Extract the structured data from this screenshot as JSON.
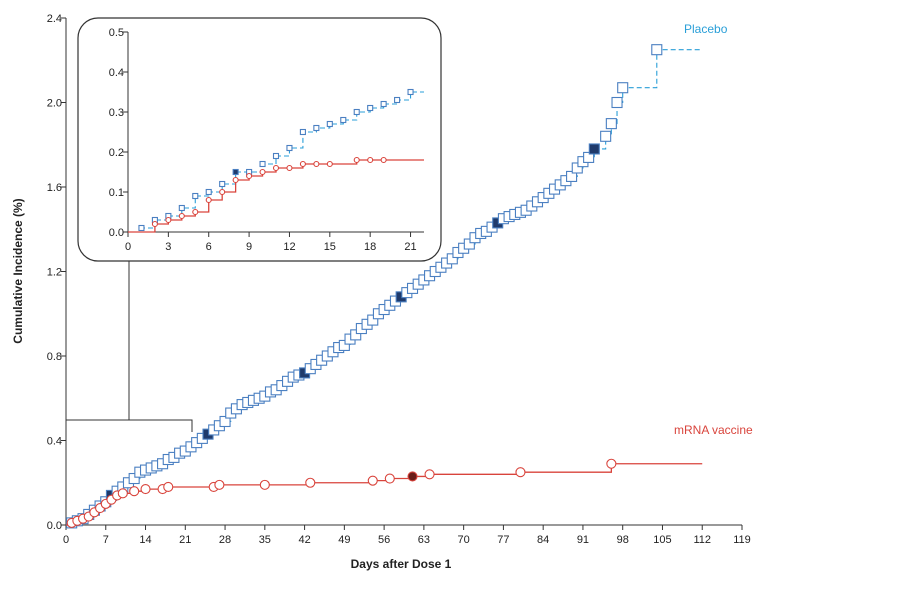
{
  "chart_data": [
    {
      "type": "line",
      "xlabel": "Days after Dose 1",
      "ylabel": "Cumulative Incidence (%)",
      "xlim": [
        0,
        119
      ],
      "ylim": [
        0,
        2.4
      ],
      "x_ticks": [
        0,
        7,
        14,
        21,
        28,
        35,
        42,
        49,
        56,
        63,
        70,
        77,
        84,
        91,
        98,
        105,
        112,
        119
      ],
      "y_ticks": [
        "0.0",
        "0.4",
        "0.8",
        "1.2",
        "1.6",
        "2.0",
        "2.4"
      ],
      "grid": false,
      "legend": "direct labels",
      "series": [
        {
          "name": "Placebo",
          "color": "#2a9fd8",
          "line_style": "dashed",
          "marker": "square",
          "x": [
            0,
            1,
            2,
            3,
            4,
            5,
            6,
            7,
            8,
            9,
            10,
            11,
            12,
            13,
            14,
            15,
            16,
            17,
            18,
            19,
            20,
            21,
            22,
            23,
            24,
            25,
            26,
            27,
            28,
            29,
            30,
            31,
            32,
            33,
            34,
            35,
            36,
            37,
            38,
            39,
            40,
            41,
            42,
            43,
            44,
            45,
            46,
            47,
            48,
            49,
            50,
            51,
            52,
            53,
            54,
            55,
            56,
            57,
            58,
            59,
            60,
            61,
            62,
            63,
            64,
            65,
            66,
            67,
            68,
            69,
            70,
            71,
            72,
            73,
            74,
            75,
            76,
            77,
            78,
            79,
            80,
            81,
            82,
            83,
            84,
            85,
            86,
            87,
            88,
            89,
            90,
            91,
            92,
            93,
            95,
            96,
            97,
            98,
            104,
            112
          ],
          "y": [
            0.0,
            0.01,
            0.02,
            0.03,
            0.05,
            0.07,
            0.09,
            0.11,
            0.14,
            0.16,
            0.18,
            0.2,
            0.22,
            0.25,
            0.26,
            0.27,
            0.28,
            0.29,
            0.31,
            0.32,
            0.34,
            0.35,
            0.37,
            0.39,
            0.41,
            0.43,
            0.45,
            0.47,
            0.49,
            0.53,
            0.55,
            0.57,
            0.58,
            0.59,
            0.6,
            0.61,
            0.63,
            0.64,
            0.66,
            0.68,
            0.7,
            0.71,
            0.72,
            0.74,
            0.76,
            0.78,
            0.8,
            0.82,
            0.84,
            0.85,
            0.88,
            0.9,
            0.93,
            0.95,
            0.97,
            1.0,
            1.02,
            1.04,
            1.06,
            1.08,
            1.1,
            1.12,
            1.14,
            1.16,
            1.18,
            1.2,
            1.22,
            1.24,
            1.26,
            1.29,
            1.31,
            1.33,
            1.36,
            1.38,
            1.39,
            1.41,
            1.43,
            1.45,
            1.46,
            1.47,
            1.48,
            1.49,
            1.51,
            1.53,
            1.55,
            1.57,
            1.59,
            1.61,
            1.63,
            1.65,
            1.69,
            1.72,
            1.74,
            1.78,
            1.84,
            1.9,
            2.0,
            2.07,
            2.25,
            2.25
          ]
        },
        {
          "name": "mRNA vaccine",
          "color": "#d9443c",
          "line_style": "solid",
          "marker": "circle",
          "x": [
            0,
            1,
            2,
            3,
            4,
            5,
            6,
            7,
            8,
            9,
            10,
            12,
            14,
            17,
            18,
            26,
            27,
            35,
            43,
            54,
            57,
            61,
            64,
            80,
            96,
            112
          ],
          "y": [
            0.0,
            0.01,
            0.02,
            0.03,
            0.04,
            0.06,
            0.08,
            0.1,
            0.12,
            0.14,
            0.15,
            0.16,
            0.17,
            0.17,
            0.18,
            0.18,
            0.19,
            0.19,
            0.2,
            0.21,
            0.22,
            0.23,
            0.24,
            0.25,
            0.29,
            0.29
          ]
        }
      ]
    },
    {
      "type": "line",
      "inset": true,
      "xlim": [
        0,
        22
      ],
      "ylim": [
        0,
        0.5
      ],
      "x_ticks": [
        0,
        3,
        6,
        9,
        12,
        15,
        18,
        21
      ],
      "y_ticks": [
        "0.0",
        "0.1",
        "0.2",
        "0.3",
        "0.4",
        "0.5"
      ],
      "series": [
        {
          "name": "Placebo",
          "x": [
            0,
            1,
            2,
            3,
            4,
            5,
            6,
            7,
            8,
            9,
            10,
            11,
            12,
            13,
            14,
            15,
            16,
            17,
            18,
            19,
            20,
            21,
            22
          ],
          "y": [
            0.0,
            0.01,
            0.03,
            0.04,
            0.06,
            0.09,
            0.1,
            0.12,
            0.15,
            0.15,
            0.17,
            0.19,
            0.21,
            0.25,
            0.26,
            0.27,
            0.28,
            0.3,
            0.31,
            0.32,
            0.33,
            0.35,
            0.35
          ]
        },
        {
          "name": "mRNA vaccine",
          "x": [
            0,
            2,
            3,
            4,
            5,
            6,
            7,
            8,
            9,
            10,
            11,
            12,
            13,
            14,
            15,
            17,
            18,
            19,
            22
          ],
          "y": [
            0.0,
            0.02,
            0.03,
            0.04,
            0.05,
            0.08,
            0.1,
            0.13,
            0.14,
            0.15,
            0.16,
            0.16,
            0.17,
            0.17,
            0.17,
            0.18,
            0.18,
            0.18,
            0.18
          ]
        }
      ]
    }
  ]
}
